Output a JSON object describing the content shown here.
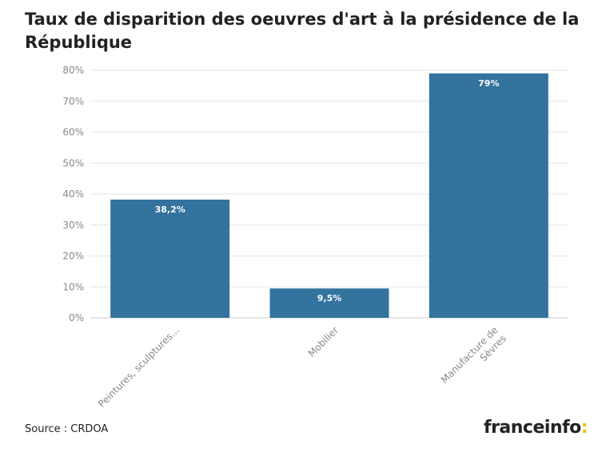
{
  "title": "Taux de disparition des oeuvres d'art à la présidence de la République",
  "source": "Source : CRDOA",
  "brand": {
    "name": "franceinfo",
    "suffix": ":",
    "accent_color": "#f5c400"
  },
  "colors": {
    "bar": "#33739e",
    "grid": "#e6e6e6",
    "tick_text": "#888888",
    "label_text": "#ffffff"
  },
  "chart_data": {
    "type": "bar",
    "title": "Taux de disparition des oeuvres d'art à la présidence de la République",
    "categories": [
      "Peintures, sculptures...",
      "Mobilier",
      "Manufacture de Sèvres"
    ],
    "values": [
      38.2,
      9.5,
      79
    ],
    "value_labels": [
      "38,2%",
      "9,5%",
      "79%"
    ],
    "yticks": [
      "0%",
      "10%",
      "20%",
      "30%",
      "40%",
      "50%",
      "60%",
      "70%",
      "80%"
    ],
    "ylim": [
      0,
      80
    ],
    "grid": true,
    "xlabel": "",
    "ylabel": ""
  }
}
